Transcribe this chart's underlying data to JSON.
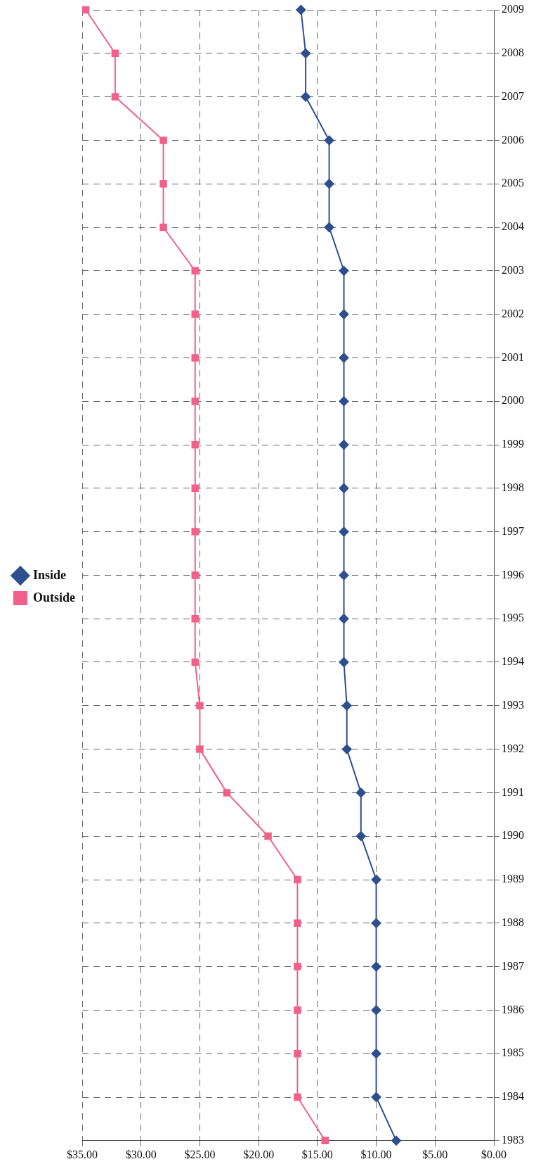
{
  "chart_data": {
    "type": "line",
    "orientation": "horizontal",
    "categories": [
      "2009",
      "2008",
      "2007",
      "2006",
      "2005",
      "2004",
      "2003",
      "2002",
      "2001",
      "2000",
      "1999",
      "1998",
      "1997",
      "1996",
      "1995",
      "1994",
      "1993",
      "1992",
      "1991",
      "1990",
      "1989",
      "1988",
      "1987",
      "1986",
      "1985",
      "1984",
      "1983"
    ],
    "series": [
      {
        "name": "Inside",
        "color": "#2e4f8f",
        "marker": "diamond",
        "values": [
          16.4,
          16.0,
          16.0,
          14.0,
          14.0,
          14.0,
          12.75,
          12.75,
          12.75,
          12.75,
          12.75,
          12.75,
          12.75,
          12.75,
          12.75,
          12.75,
          12.5,
          12.5,
          11.3,
          11.3,
          10.0,
          10.0,
          10.0,
          10.0,
          10.0,
          10.0,
          8.3
        ]
      },
      {
        "name": "Outside",
        "color": "#f0608a",
        "marker": "square",
        "values": [
          34.7,
          32.2,
          32.2,
          28.1,
          28.1,
          28.1,
          25.4,
          25.4,
          25.4,
          25.4,
          25.4,
          25.4,
          25.4,
          25.4,
          25.4,
          25.4,
          25.0,
          25.0,
          22.7,
          19.2,
          16.7,
          16.7,
          16.7,
          16.7,
          16.7,
          16.7,
          14.35
        ]
      }
    ],
    "xlim": [
      35,
      0
    ],
    "xticks": [
      {
        "value": 35,
        "label": "$35.00"
      },
      {
        "value": 30,
        "label": "$30.00"
      },
      {
        "value": 25,
        "label": "$25.00"
      },
      {
        "value": 20,
        "label": "$20.00"
      },
      {
        "value": 15,
        "label": "$15.00"
      },
      {
        "value": 10,
        "label": "$10.00"
      },
      {
        "value": 5,
        "label": "$5.00"
      },
      {
        "value": 0,
        "label": "$0.00"
      }
    ],
    "grid": true,
    "legend": "left",
    "line_style": "solid"
  }
}
